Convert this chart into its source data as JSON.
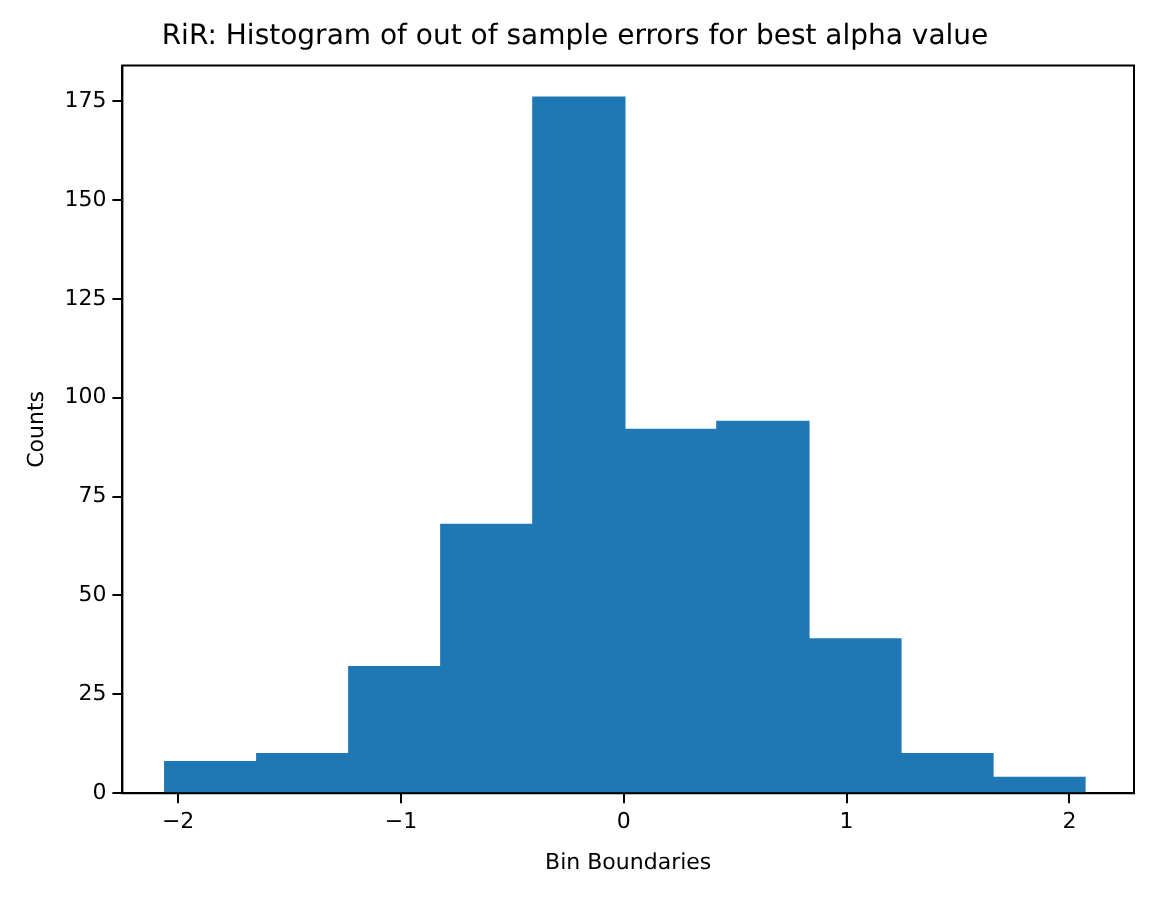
{
  "chart_data": {
    "type": "histogram",
    "title": "RiR: Histogram of out of sample errors for best alpha value",
    "xlabel": "Bin Boundaries",
    "ylabel": "Counts",
    "bins": [
      -2.06,
      -1.647,
      -1.234,
      -0.821,
      -0.408,
      0.005,
      0.418,
      0.831,
      1.244,
      1.657,
      2.07
    ],
    "values": [
      8,
      10,
      32,
      68,
      176,
      92,
      94,
      39,
      10,
      4
    ],
    "color": "#1f77b4",
    "xlim": [
      -2.25,
      2.29
    ],
    "xticks": [
      -2,
      -1,
      0,
      1,
      2
    ],
    "ylim": [
      0,
      184
    ],
    "yticks": [
      0,
      25,
      50,
      75,
      100,
      125,
      150,
      175
    ],
    "grid": false
  }
}
